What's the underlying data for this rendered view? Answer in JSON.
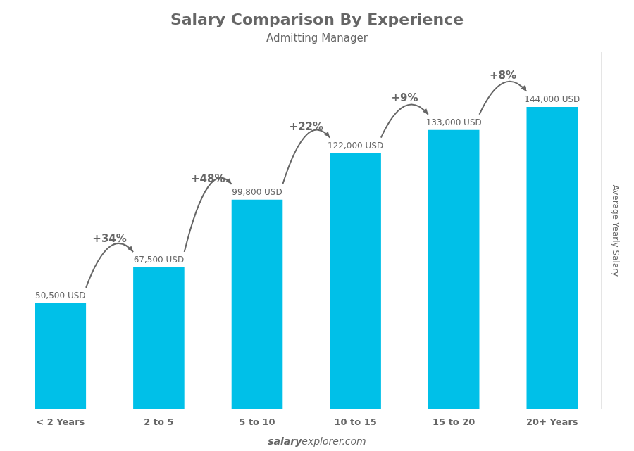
{
  "chart_data": {
    "type": "bar",
    "title": "Salary Comparison By Experience",
    "subtitle": "Admitting Manager",
    "categories": [
      "< 2 Years",
      "2 to 5",
      "5 to 10",
      "10 to 15",
      "15 to 20",
      "20+ Years"
    ],
    "values": [
      50500,
      67500,
      99800,
      122000,
      133000,
      144000
    ],
    "value_labels": [
      "50,500 USD",
      "67,500 USD",
      "99,800 USD",
      "122,000 USD",
      "133,000 USD",
      "144,000 USD"
    ],
    "data_labels": true,
    "annotations": [
      "+34%",
      "+48%",
      "+22%",
      "+9%",
      "+8%"
    ],
    "ylabel": "Average Yearly Salary",
    "footer": [
      "salary",
      "explorer.com"
    ],
    "color": "#00c0e8",
    "ylim": [
      0,
      170000
    ],
    "tick_labels": "x",
    "grid": false
  }
}
